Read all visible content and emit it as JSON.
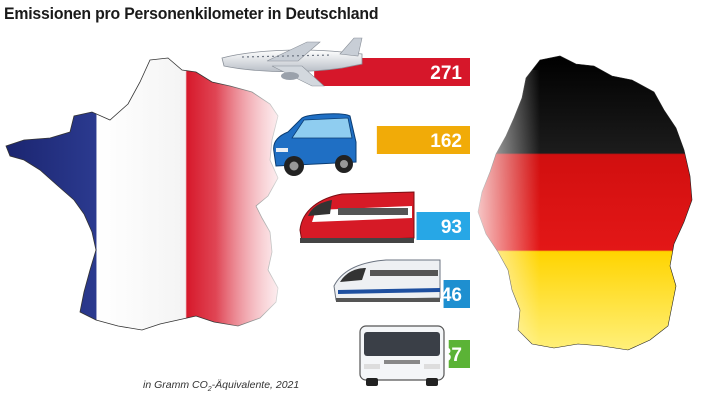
{
  "title": "Emissionen pro Personenkilometer in Deutschland",
  "footnote": {
    "prefix": "in Gramm CO",
    "subscript": "2",
    "suffix": "-Äquivalente, 2021"
  },
  "chart_data": {
    "type": "bar",
    "orientation": "horizontal",
    "title": "Emissionen pro Personenkilometer in Deutschland",
    "unit_note": "in Gramm CO2-Äquivalente, 2021",
    "categories": [
      "plane-icon",
      "car-icon",
      "train-icon",
      "high-speed-train-icon",
      "bus-icon"
    ],
    "values": [
      271,
      162,
      93,
      46,
      37
    ],
    "colors": [
      "#d6172a",
      "#f1ab08",
      "#27a7e6",
      "#1e8fd0",
      "#5bb336"
    ],
    "value_labels": [
      "271",
      "162",
      "93",
      "46",
      "37"
    ],
    "data_labels_inside_bar_end": true
  },
  "decorations": {
    "left_map": {
      "name": "france-map",
      "colors": [
        "#1f2a78",
        "#ffffff",
        "#d51426"
      ]
    },
    "right_map": {
      "name": "germany-map",
      "colors": [
        "#0c0c0c",
        "#dd1010",
        "#ffd800"
      ]
    }
  }
}
